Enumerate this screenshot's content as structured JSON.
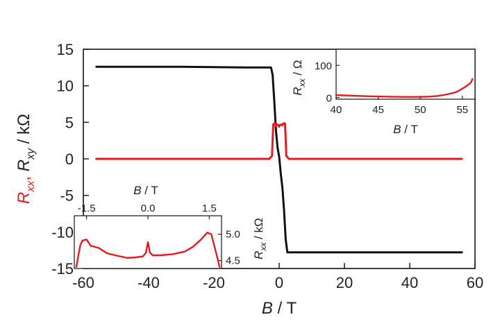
{
  "colors": {
    "rxx": "#e8191b",
    "rxy": "#111111",
    "axis": "#111111"
  },
  "chart_data": [
    {
      "type": "line",
      "title": "",
      "xlabel_var": "B",
      "xlabel_unit": " / T",
      "ylabel_parts": {
        "r1": "R",
        "s1": "xx",
        "sep": ", ",
        "r2": "R",
        "s2": "xy",
        "unit": " / kΩ"
      },
      "xlim": [
        -60,
        60
      ],
      "ylim": [
        -15,
        15
      ],
      "xticks": [
        -60,
        -40,
        -20,
        0,
        20,
        40,
        60
      ],
      "yticks": [
        -15,
        -10,
        -5,
        0,
        5,
        10,
        15
      ],
      "grid": false,
      "series": [
        {
          "key": "rxy",
          "x": [
            -56,
            -30,
            -10,
            -2.5,
            -2.0,
            -1.5,
            -1.0,
            -0.5,
            0,
            0.5,
            1.0,
            1.5,
            2.0,
            2.5,
            10,
            30,
            56
          ],
          "y": [
            12.6,
            12.6,
            12.5,
            12.5,
            11.5,
            8.0,
            4.0,
            1.5,
            0.3,
            -2.0,
            -4.0,
            -7.0,
            -11.0,
            -12.8,
            -12.8,
            -12.8,
            -12.8
          ]
        },
        {
          "key": "rxx",
          "x": [
            -56,
            -10,
            -3,
            -2.2,
            -1.8,
            -1.4,
            -1.0,
            -0.6,
            -0.2,
            0,
            0.2,
            0.6,
            1.0,
            1.4,
            1.8,
            2.2,
            3,
            10,
            56
          ],
          "y": [
            0,
            0,
            0,
            0.4,
            4.7,
            4.9,
            4.5,
            4.7,
            4.6,
            4.4,
            4.6,
            4.7,
            4.6,
            4.9,
            4.8,
            0.4,
            0,
            0,
            0
          ]
        }
      ]
    },
    {
      "type": "line",
      "title": "",
      "xlabel_var": "B",
      "xlabel_unit": " / T",
      "ylabel_parts": {
        "r1": "R",
        "s1": "xx",
        "unit": " / Ω"
      },
      "xlim": [
        40,
        56.5
      ],
      "ylim": [
        -5,
        150
      ],
      "xticks": [
        40,
        45,
        50,
        55
      ],
      "yticks": [
        0,
        100
      ],
      "grid": false,
      "series": [
        {
          "key": "rxx",
          "x": [
            40,
            42,
            44,
            46,
            48,
            50,
            51,
            52,
            53,
            54,
            54.5,
            55,
            55.5,
            56,
            56.2
          ],
          "y": [
            8,
            6,
            4,
            3,
            2,
            2,
            3,
            5,
            9,
            15,
            20,
            28,
            36,
            46,
            58
          ]
        }
      ]
    },
    {
      "type": "line",
      "title": "",
      "xlabel_var": "B",
      "xlabel_unit": " / T",
      "ylabel_parts": {
        "r1": "R",
        "s1": "xx",
        "unit": " / kΩ"
      },
      "xlim": [
        -1.8,
        1.8
      ],
      "ylim": [
        4.35,
        5.35
      ],
      "xticks": [
        -1.5,
        0.0,
        1.5
      ],
      "xtick_labels": [
        "-1.5",
        "0.0",
        "1.5"
      ],
      "yticks": [
        4.5,
        5.0
      ],
      "ytick_labels": [
        "4.5",
        "5.0"
      ],
      "grid": false,
      "series": [
        {
          "key": "rxx",
          "x": [
            -1.75,
            -1.7,
            -1.65,
            -1.6,
            -1.5,
            -1.4,
            -1.2,
            -1.0,
            -0.8,
            -0.5,
            -0.3,
            -0.12,
            -0.05,
            0.0,
            0.05,
            0.12,
            0.3,
            0.6,
            0.9,
            1.1,
            1.3,
            1.45,
            1.55,
            1.6,
            1.7,
            1.75
          ],
          "y": [
            4.38,
            4.6,
            4.8,
            4.88,
            4.9,
            4.78,
            4.74,
            4.64,
            4.6,
            4.55,
            4.56,
            4.58,
            4.65,
            4.85,
            4.65,
            4.6,
            4.6,
            4.62,
            4.67,
            4.76,
            4.9,
            5.03,
            5.0,
            4.85,
            4.55,
            4.38
          ]
        }
      ]
    }
  ]
}
